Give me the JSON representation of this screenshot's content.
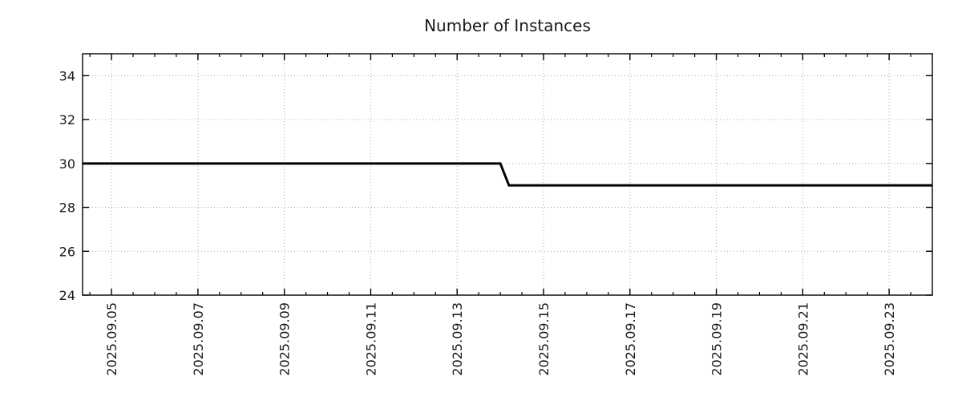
{
  "chart_data": {
    "type": "line",
    "title": "Number of Instances",
    "xlabel": "",
    "ylabel": "",
    "x_unit": "days relative to 2025.09.05",
    "xlim": [
      -0.67,
      19.0
    ],
    "ylim": [
      24,
      35
    ],
    "x_ticks": [
      {
        "pos": 0,
        "label": "2025.09.05"
      },
      {
        "pos": 2,
        "label": "2025.09.07"
      },
      {
        "pos": 4,
        "label": "2025.09.09"
      },
      {
        "pos": 6,
        "label": "2025.09.11"
      },
      {
        "pos": 8,
        "label": "2025.09.13"
      },
      {
        "pos": 10,
        "label": "2025.09.15"
      },
      {
        "pos": 12,
        "label": "2025.09.17"
      },
      {
        "pos": 14,
        "label": "2025.09.19"
      },
      {
        "pos": 16,
        "label": "2025.09.21"
      },
      {
        "pos": 18,
        "label": "2025.09.23"
      }
    ],
    "x_minor_tick_interval": 0.5,
    "y_ticks": [
      24,
      26,
      28,
      30,
      32,
      34
    ],
    "grid": "dotted-major-both-axes",
    "legend": "none",
    "series": [
      {
        "points_x": [
          -0.67,
          9.0,
          9.2,
          19.0
        ],
        "points_y": [
          30,
          30,
          29,
          29
        ],
        "color": "#000000",
        "line_width": 3
      }
    ],
    "colors": {
      "background": "#ffffff",
      "border": "#000000",
      "grid": "#a6a6a6",
      "text": "#1a1a1a",
      "line": "#000000"
    }
  }
}
